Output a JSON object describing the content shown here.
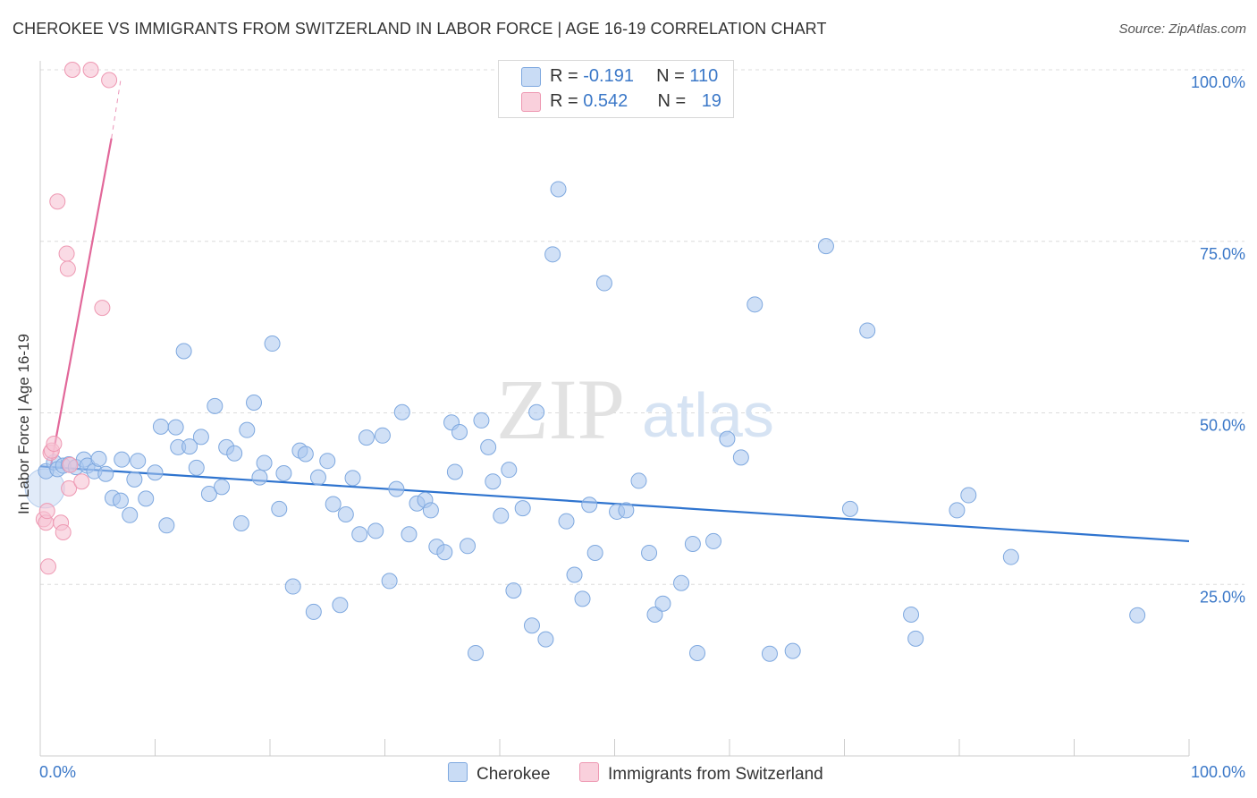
{
  "title": "CHEROKEE VS IMMIGRANTS FROM SWITZERLAND IN LABOR FORCE | AGE 16-19 CORRELATION CHART",
  "source": "Source: ZipAtlas.com",
  "watermark": {
    "zip": "ZIP",
    "atlas": "atlas"
  },
  "legend_top": {
    "rows": [
      {
        "r_label": "R = ",
        "r_value": "-0.191",
        "n_label": "N = ",
        "n_value": "110",
        "color": "#a9c7ee"
      },
      {
        "r_label": "R = ",
        "r_value": "0.542",
        "n_label": "N = ",
        "n_value": "19",
        "color": "#f5b8cb"
      }
    ]
  },
  "legend_bottom": [
    {
      "label": "Cherokee",
      "color": "#a9c7ee"
    },
    {
      "label": "Immigrants from Switzerland",
      "color": "#f5b8cb"
    }
  ],
  "colors": {
    "blue_fill": "#a9c7ee",
    "blue_stroke": "#7ea8df",
    "blue_line": "#2f74cf",
    "pink_fill": "#f7c3d3",
    "pink_stroke": "#ee98b2",
    "pink_line": "#e2689a",
    "axis_tick_label": "#3b78c8",
    "grid": "#dcdcdc"
  },
  "chart_data": {
    "type": "scatter",
    "title": "CHEROKEE VS IMMIGRANTS FROM SWITZERLAND IN LABOR FORCE | AGE 16-19 CORRELATION CHART",
    "xlabel": "",
    "ylabel": "In Labor Force | Age 16-19",
    "xlim": [
      0,
      100
    ],
    "ylim": [
      0,
      100
    ],
    "x_tick_labels": [
      "0.0%",
      "100.0%"
    ],
    "y_ticks": [
      25,
      50,
      75,
      100
    ],
    "y_tick_labels": [
      "25.0%",
      "50.0%",
      "75.0%",
      "100.0%"
    ],
    "grid": true,
    "legend_position": "bottom",
    "series": [
      {
        "name": "Cherokee",
        "x": [
          0.5,
          1.2,
          1.5,
          2.0,
          2.5,
          3.1,
          3.8,
          4.1,
          4.7,
          5.1,
          5.7,
          6.3,
          7.0,
          7.1,
          7.8,
          8.2,
          8.5,
          9.2,
          10.0,
          10.5,
          11.0,
          11.8,
          12.0,
          12.5,
          13.0,
          13.6,
          14.0,
          14.7,
          15.2,
          15.8,
          16.2,
          16.9,
          17.5,
          18.0,
          18.6,
          19.1,
          19.5,
          20.2,
          20.8,
          21.2,
          22.0,
          22.6,
          23.1,
          23.8,
          24.2,
          25.0,
          25.5,
          26.1,
          26.6,
          27.2,
          27.8,
          28.4,
          29.2,
          29.8,
          30.4,
          31.0,
          31.5,
          32.1,
          32.8,
          33.5,
          34.0,
          34.5,
          35.2,
          35.8,
          36.1,
          36.5,
          37.2,
          37.9,
          38.4,
          39.0,
          39.4,
          40.1,
          40.8,
          41.2,
          42.0,
          42.8,
          43.2,
          44.0,
          44.6,
          45.1,
          45.8,
          46.5,
          47.2,
          47.8,
          48.3,
          49.1,
          50.2,
          51.0,
          52.1,
          53.0,
          53.5,
          54.2,
          55.8,
          56.8,
          57.2,
          58.6,
          59.8,
          61.0,
          62.2,
          63.5,
          65.5,
          68.4,
          70.5,
          72.0,
          75.8,
          76.2,
          79.8,
          80.8,
          84.5,
          95.5
        ],
        "y": [
          41.5,
          42.8,
          41.8,
          42.3,
          42.5,
          42.1,
          43.2,
          42.3,
          41.5,
          43.3,
          41.1,
          37.6,
          37.2,
          43.2,
          35.1,
          40.3,
          43.0,
          37.5,
          41.3,
          48.0,
          33.6,
          47.9,
          45.0,
          59.0,
          45.1,
          42.0,
          46.5,
          38.2,
          51.0,
          39.2,
          45.0,
          44.1,
          33.9,
          47.5,
          51.5,
          40.6,
          42.7,
          60.1,
          36.0,
          41.2,
          24.7,
          44.5,
          44.0,
          21.0,
          40.6,
          43.0,
          36.7,
          22.0,
          35.2,
          40.5,
          32.3,
          46.4,
          32.8,
          46.7,
          25.5,
          38.9,
          50.1,
          32.3,
          36.8,
          37.3,
          35.8,
          30.5,
          29.7,
          48.6,
          41.4,
          47.2,
          30.6,
          15.0,
          48.9,
          45.0,
          40.0,
          35.0,
          41.7,
          24.1,
          36.1,
          19.0,
          50.1,
          17.0,
          73.1,
          82.6,
          34.2,
          26.4,
          22.9,
          36.6,
          29.6,
          68.9,
          35.6,
          35.8,
          40.1,
          29.6,
          20.6,
          22.2,
          25.2,
          30.9,
          15.0,
          31.3,
          46.2,
          43.5,
          65.8,
          14.9,
          15.3,
          74.3,
          36.0,
          62.0,
          20.6,
          17.1,
          35.8,
          38.0,
          29.0,
          20.5
        ],
        "trend": {
          "x": [
            0,
            100
          ],
          "y": [
            42.2,
            31.3
          ]
        }
      },
      {
        "name": "Immigrants from Switzerland",
        "x": [
          0.3,
          0.5,
          0.6,
          0.7,
          0.9,
          1.0,
          1.2,
          1.5,
          1.8,
          2.0,
          2.3,
          2.4,
          2.5,
          2.6,
          2.8,
          3.6,
          4.4,
          5.4,
          6.0
        ],
        "y": [
          34.5,
          34.0,
          35.7,
          27.6,
          44.2,
          44.5,
          45.5,
          80.8,
          34.0,
          32.6,
          73.2,
          71.0,
          39.0,
          42.4,
          100.0,
          40.0,
          100.0,
          65.3,
          98.5
        ],
        "trend": {
          "x": [
            0.9,
            6.2
          ],
          "y": [
            42.0,
            90.0
          ]
        },
        "trend_dashed_to": {
          "x": 7.0,
          "y": 98.5
        }
      }
    ]
  }
}
